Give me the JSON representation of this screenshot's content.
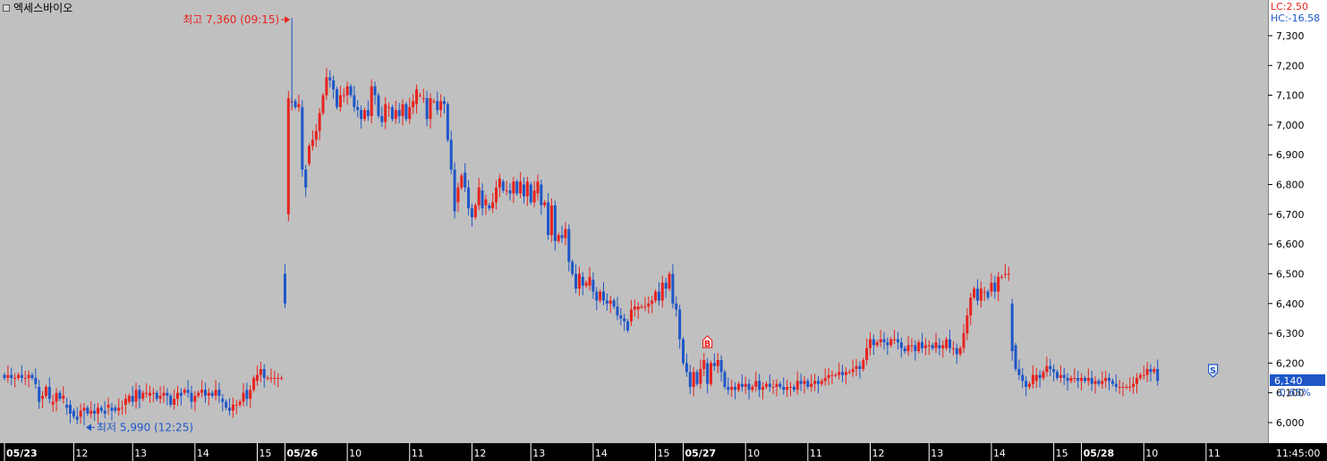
{
  "window": {
    "title": "엑세스바이오"
  },
  "colors": {
    "up": "#e8231f",
    "down": "#1e56c8",
    "bg": "#c0c0c0",
    "axis_bg": "#ffffff",
    "time_bg": "#000000"
  },
  "status": {
    "lc": "LC:2.50",
    "hc": "HC:-16.58"
  },
  "annotations": {
    "high": "최고 7,360 (09:15)",
    "low": "최저 5,990 (12:25)",
    "buy_marker": "B",
    "sell_marker": "S"
  },
  "current": {
    "price": "6,140",
    "change": "-0.65%"
  },
  "chart_data": {
    "type": "candlestick",
    "title": "엑세스바이오",
    "ylim": [
      5940,
      7400
    ],
    "y_ticks": [
      6000,
      6100,
      6200,
      6300,
      6400,
      6500,
      6600,
      6700,
      6800,
      6900,
      7000,
      7100,
      7200,
      7300
    ],
    "y_tick_labels": [
      "6,000",
      "6,100",
      "6,200",
      "6,300",
      "6,400",
      "6,500",
      "6,600",
      "6,700",
      "6,800",
      "6,900",
      "7,000",
      "7,100",
      "7,200",
      "7,300"
    ],
    "x_labels": [
      {
        "label": "05/23",
        "bar": 0,
        "date": true
      },
      {
        "label": "12",
        "bar": 20
      },
      {
        "label": "13",
        "bar": 37
      },
      {
        "label": "14",
        "bar": 55
      },
      {
        "label": "15",
        "bar": 73
      },
      {
        "label": "05/26",
        "bar": 81,
        "date": true
      },
      {
        "label": "10",
        "bar": 99
      },
      {
        "label": "11",
        "bar": 117
      },
      {
        "label": "12",
        "bar": 135
      },
      {
        "label": "13",
        "bar": 152
      },
      {
        "label": "14",
        "bar": 170
      },
      {
        "label": "15",
        "bar": 188
      },
      {
        "label": "05/27",
        "bar": 196,
        "date": true
      },
      {
        "label": "10",
        "bar": 214
      },
      {
        "label": "11",
        "bar": 232
      },
      {
        "label": "12",
        "bar": 250
      },
      {
        "label": "13",
        "bar": 267
      },
      {
        "label": "14",
        "bar": 285
      },
      {
        "label": "15",
        "bar": 303
      },
      {
        "label": "05/28",
        "bar": 311,
        "date": true
      },
      {
        "label": "10",
        "bar": 329
      },
      {
        "label": "11",
        "bar": 347
      }
    ],
    "time_label": "11:45:00",
    "candles_oc": [
      [
        6160,
        6150
      ],
      [
        6150,
        6160
      ],
      [
        6160,
        6150
      ],
      [
        6150,
        6150
      ],
      [
        6150,
        6160
      ],
      [
        6160,
        6150
      ],
      [
        6150,
        6150
      ],
      [
        6150,
        6160
      ],
      [
        6160,
        6150
      ],
      [
        6150,
        6130
      ],
      [
        6120,
        6070
      ],
      [
        6080,
        6090
      ],
      [
        6090,
        6120
      ],
      [
        6120,
        6080
      ],
      [
        6060,
        6070
      ],
      [
        6070,
        6100
      ],
      [
        6100,
        6080
      ],
      [
        6080,
        6090
      ],
      [
        6060,
        6050
      ],
      [
        6060,
        6030
      ],
      [
        6040,
        6020
      ],
      [
        6020,
        6010
      ],
      [
        6020,
        6040
      ],
      [
        6040,
        6050
      ],
      [
        6050,
        6030
      ],
      [
        6030,
        6040
      ],
      [
        6040,
        6030
      ],
      [
        6030,
        6050
      ],
      [
        6050,
        6040
      ],
      [
        6040,
        6030
      ],
      [
        6050,
        6060
      ],
      [
        6050,
        6040
      ],
      [
        6050,
        6040
      ],
      [
        6040,
        6050
      ],
      [
        6050,
        6050
      ],
      [
        6060,
        6080
      ],
      [
        6070,
        6090
      ],
      [
        6090,
        6070
      ],
      [
        6070,
        6110
      ],
      [
        6110,
        6080
      ],
      [
        6080,
        6100
      ],
      [
        6100,
        6100
      ],
      [
        6090,
        6100
      ],
      [
        6100,
        6100
      ],
      [
        6100,
        6080
      ],
      [
        6080,
        6090
      ],
      [
        6090,
        6100
      ],
      [
        6100,
        6090
      ],
      [
        6090,
        6060
      ],
      [
        6060,
        6080
      ],
      [
        6080,
        6100
      ],
      [
        6100,
        6090
      ],
      [
        6100,
        6110
      ],
      [
        6110,
        6100
      ],
      [
        6100,
        6070
      ],
      [
        6070,
        6090
      ],
      [
        6090,
        6100
      ],
      [
        6100,
        6110
      ],
      [
        6110,
        6090
      ],
      [
        6090,
        6100
      ],
      [
        6100,
        6090
      ],
      [
        6090,
        6110
      ],
      [
        6110,
        6090
      ],
      [
        6080,
        6070
      ],
      [
        6070,
        6050
      ],
      [
        6050,
        6040
      ],
      [
        6040,
        6060
      ],
      [
        6060,
        6060
      ],
      [
        6060,
        6070
      ],
      [
        6070,
        6100
      ],
      [
        6110,
        6080
      ],
      [
        6080,
        6110
      ],
      [
        6110,
        6150
      ],
      [
        6140,
        6160
      ],
      [
        6160,
        6180
      ],
      [
        6180,
        6150
      ],
      [
        6150,
        6150
      ],
      [
        6150,
        6150
      ],
      [
        6150,
        6150
      ],
      [
        6150,
        6150
      ],
      [
        6150,
        6150
      ],
      [
        6500,
        6400
      ],
      [
        6700,
        7090
      ],
      [
        7080,
        7080
      ],
      [
        7080,
        7060
      ],
      [
        7060,
        7070
      ],
      [
        7060,
        6850
      ],
      [
        6850,
        6790
      ],
      [
        6870,
        6930
      ],
      [
        6930,
        6950
      ],
      [
        6950,
        6980
      ],
      [
        6980,
        7040
      ],
      [
        7040,
        7100
      ],
      [
        7100,
        7160
      ],
      [
        7160,
        7150
      ],
      [
        7150,
        7120
      ],
      [
        7120,
        7060
      ],
      [
        7060,
        7100
      ],
      [
        7100,
        7100
      ],
      [
        7100,
        7130
      ],
      [
        7130,
        7100
      ],
      [
        7100,
        7060
      ],
      [
        7060,
        7050
      ],
      [
        7050,
        7020
      ],
      [
        7020,
        7050
      ],
      [
        7050,
        7030
      ],
      [
        7030,
        7130
      ],
      [
        7130,
        7100
      ],
      [
        7100,
        7030
      ],
      [
        7030,
        7010
      ],
      [
        7010,
        7070
      ],
      [
        7060,
        7060
      ],
      [
        7060,
        7020
      ],
      [
        7020,
        7050
      ],
      [
        7050,
        7030
      ],
      [
        7030,
        7070
      ],
      [
        7070,
        7020
      ],
      [
        7020,
        7060
      ],
      [
        7060,
        7080
      ],
      [
        7070,
        7120
      ],
      [
        7100,
        7100
      ],
      [
        7090,
        7090
      ],
      [
        7090,
        7020
      ],
      [
        7020,
        7090
      ],
      [
        7080,
        7080
      ],
      [
        7080,
        7050
      ],
      [
        7050,
        7080
      ],
      [
        7080,
        7070
      ],
      [
        7070,
        6950
      ],
      [
        6950,
        6850
      ],
      [
        6850,
        6710
      ],
      [
        6740,
        6790
      ],
      [
        6790,
        6830
      ],
      [
        6840,
        6790
      ],
      [
        6790,
        6720
      ],
      [
        6720,
        6690
      ],
      [
        6690,
        6730
      ],
      [
        6730,
        6790
      ],
      [
        6780,
        6720
      ],
      [
        6730,
        6750
      ],
      [
        6730,
        6720
      ],
      [
        6720,
        6740
      ],
      [
        6740,
        6790
      ],
      [
        6790,
        6820
      ],
      [
        6810,
        6780
      ],
      [
        6780,
        6780
      ],
      [
        6780,
        6770
      ],
      [
        6770,
        6810
      ],
      [
        6810,
        6770
      ],
      [
        6770,
        6810
      ],
      [
        6800,
        6760
      ],
      [
        6760,
        6810
      ],
      [
        6800,
        6740
      ],
      [
        6740,
        6780
      ],
      [
        6770,
        6810
      ],
      [
        6800,
        6730
      ],
      [
        6730,
        6740
      ],
      [
        6740,
        6630
      ],
      [
        6630,
        6730
      ],
      [
        6730,
        6610
      ],
      [
        6610,
        6630
      ],
      [
        6630,
        6620
      ],
      [
        6620,
        6650
      ],
      [
        6650,
        6540
      ],
      [
        6540,
        6500
      ],
      [
        6500,
        6450
      ],
      [
        6450,
        6500
      ],
      [
        6490,
        6460
      ],
      [
        6460,
        6470
      ],
      [
        6460,
        6490
      ],
      [
        6480,
        6440
      ],
      [
        6440,
        6410
      ],
      [
        6410,
        6440
      ],
      [
        6440,
        6410
      ],
      [
        6410,
        6400
      ],
      [
        6400,
        6410
      ],
      [
        6410,
        6390
      ],
      [
        6390,
        6360
      ],
      [
        6360,
        6350
      ],
      [
        6350,
        6340
      ],
      [
        6340,
        6310
      ],
      [
        6340,
        6380
      ],
      [
        6380,
        6390
      ],
      [
        6380,
        6390
      ],
      [
        6390,
        6390
      ],
      [
        6390,
        6390
      ],
      [
        6390,
        6400
      ],
      [
        6400,
        6410
      ],
      [
        6410,
        6440
      ],
      [
        6440,
        6410
      ],
      [
        6410,
        6470
      ],
      [
        6470,
        6450
      ],
      [
        6450,
        6500
      ],
      [
        6500,
        6400
      ],
      [
        6400,
        6380
      ],
      [
        6380,
        6280
      ],
      [
        6280,
        6200
      ],
      [
        6200,
        6170
      ],
      [
        6170,
        6120
      ],
      [
        6120,
        6170
      ],
      [
        6170,
        6130
      ],
      [
        6130,
        6180
      ],
      [
        6180,
        6210
      ],
      [
        6200,
        6130
      ],
      [
        6130,
        6200
      ],
      [
        6200,
        6190
      ],
      [
        6190,
        6210
      ],
      [
        6210,
        6170
      ],
      [
        6170,
        6120
      ],
      [
        6120,
        6110
      ],
      [
        6110,
        6120
      ],
      [
        6120,
        6110
      ],
      [
        6110,
        6130
      ],
      [
        6130,
        6120
      ],
      [
        6120,
        6130
      ],
      [
        6130,
        6110
      ],
      [
        6110,
        6120
      ],
      [
        6120,
        6140
      ],
      [
        6140,
        6110
      ],
      [
        6110,
        6120
      ],
      [
        6120,
        6130
      ],
      [
        6130,
        6120
      ],
      [
        6120,
        6120
      ],
      [
        6120,
        6130
      ],
      [
        6130,
        6120
      ],
      [
        6120,
        6110
      ],
      [
        6110,
        6120
      ],
      [
        6120,
        6120
      ],
      [
        6120,
        6110
      ],
      [
        6110,
        6140
      ],
      [
        6140,
        6130
      ],
      [
        6130,
        6140
      ],
      [
        6140,
        6120
      ],
      [
        6120,
        6130
      ],
      [
        6130,
        6140
      ],
      [
        6140,
        6130
      ],
      [
        6130,
        6140
      ],
      [
        6140,
        6150
      ],
      [
        6150,
        6160
      ],
      [
        6160,
        6160
      ],
      [
        6160,
        6160
      ],
      [
        6160,
        6170
      ],
      [
        6170,
        6160
      ],
      [
        6160,
        6170
      ],
      [
        6170,
        6170
      ],
      [
        6170,
        6180
      ],
      [
        6180,
        6190
      ],
      [
        6190,
        6180
      ],
      [
        6180,
        6210
      ],
      [
        6210,
        6250
      ],
      [
        6250,
        6280
      ],
      [
        6280,
        6260
      ],
      [
        6260,
        6270
      ],
      [
        6270,
        6280
      ],
      [
        6280,
        6270
      ],
      [
        6270,
        6260
      ],
      [
        6260,
        6280
      ],
      [
        6280,
        6280
      ],
      [
        6280,
        6270
      ],
      [
        6270,
        6250
      ],
      [
        6250,
        6240
      ],
      [
        6240,
        6260
      ],
      [
        6260,
        6260
      ],
      [
        6260,
        6240
      ],
      [
        6240,
        6270
      ],
      [
        6270,
        6250
      ],
      [
        6250,
        6260
      ],
      [
        6260,
        6260
      ],
      [
        6260,
        6250
      ],
      [
        6250,
        6270
      ],
      [
        6260,
        6250
      ],
      [
        6250,
        6260
      ],
      [
        6250,
        6280
      ],
      [
        6280,
        6250
      ],
      [
        6250,
        6250
      ],
      [
        6250,
        6230
      ],
      [
        6230,
        6250
      ],
      [
        6250,
        6300
      ],
      [
        6300,
        6360
      ],
      [
        6360,
        6420
      ],
      [
        6420,
        6450
      ],
      [
        6450,
        6410
      ],
      [
        6410,
        6450
      ],
      [
        6440,
        6440
      ],
      [
        6440,
        6420
      ],
      [
        6440,
        6470
      ],
      [
        6470,
        6440
      ],
      [
        6440,
        6490
      ],
      [
        6490,
        6490
      ],
      [
        6500,
        6500
      ],
      [
        6500,
        6500
      ],
      [
        6400,
        6240
      ],
      [
        6260,
        6180
      ],
      [
        6180,
        6160
      ],
      [
        6160,
        6140
      ],
      [
        6140,
        6120
      ],
      [
        6120,
        6130
      ],
      [
        6130,
        6160
      ],
      [
        6140,
        6160
      ],
      [
        6160,
        6150
      ],
      [
        6150,
        6170
      ],
      [
        6170,
        6190
      ],
      [
        6190,
        6180
      ],
      [
        6180,
        6170
      ],
      [
        6170,
        6150
      ],
      [
        6150,
        6160
      ],
      [
        6160,
        6150
      ],
      [
        6150,
        6140
      ],
      [
        6140,
        6150
      ],
      [
        6150,
        6150
      ],
      [
        6150,
        6140
      ],
      [
        6140,
        6150
      ],
      [
        6150,
        6140
      ],
      [
        6140,
        6150
      ],
      [
        6150,
        6130
      ],
      [
        6130,
        6140
      ],
      [
        6140,
        6130
      ],
      [
        6130,
        6140
      ],
      [
        6140,
        6150
      ],
      [
        6150,
        6140
      ],
      [
        6140,
        6130
      ],
      [
        6130,
        6120
      ],
      [
        6120,
        6120
      ],
      [
        6120,
        6120
      ],
      [
        6120,
        6120
      ],
      [
        6120,
        6120
      ],
      [
        6120,
        6130
      ],
      [
        6130,
        6150
      ],
      [
        6150,
        6160
      ],
      [
        6160,
        6160
      ],
      [
        6160,
        6180
      ],
      [
        6180,
        6170
      ],
      [
        6170,
        6180
      ],
      [
        6180,
        6140
      ]
    ],
    "high": {
      "price": 7360,
      "bar": 83
    },
    "low": {
      "price": 5990,
      "bar": 23
    },
    "current_price": 6140
  }
}
